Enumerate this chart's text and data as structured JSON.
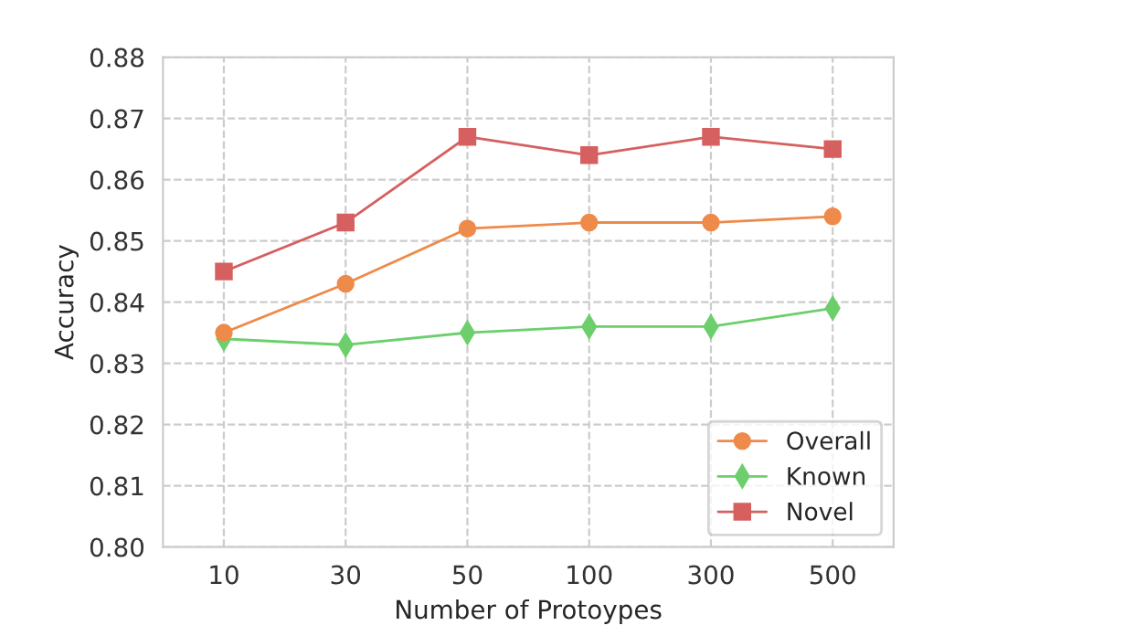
{
  "chart_data": {
    "type": "line",
    "xlabel": "Number of Protoypes",
    "ylabel": "Accuracy",
    "categories": [
      "10",
      "30",
      "50",
      "100",
      "300",
      "500"
    ],
    "series": [
      {
        "name": "Overall",
        "color": "#ee8a4a",
        "marker": "circle",
        "values": [
          0.835,
          0.843,
          0.852,
          0.853,
          0.853,
          0.854
        ]
      },
      {
        "name": "Known",
        "color": "#6ccf6c",
        "marker": "diamond",
        "values": [
          0.834,
          0.833,
          0.835,
          0.836,
          0.836,
          0.839
        ]
      },
      {
        "name": "Novel",
        "color": "#d65f5f",
        "marker": "square",
        "values": [
          0.845,
          0.853,
          0.867,
          0.864,
          0.867,
          0.865
        ]
      }
    ],
    "ylim": [
      0.8,
      0.88
    ],
    "yticks": [
      {
        "value": 0.8,
        "label": "0.80"
      },
      {
        "value": 0.81,
        "label": "0.81"
      },
      {
        "value": 0.82,
        "label": "0.82"
      },
      {
        "value": 0.83,
        "label": "0.83"
      },
      {
        "value": 0.84,
        "label": "0.84"
      },
      {
        "value": 0.85,
        "label": "0.85"
      },
      {
        "value": 0.86,
        "label": "0.86"
      },
      {
        "value": 0.87,
        "label": "0.87"
      },
      {
        "value": 0.88,
        "label": "0.88"
      }
    ],
    "grid": true,
    "legend": "bottom right",
    "line_style": "solid"
  }
}
